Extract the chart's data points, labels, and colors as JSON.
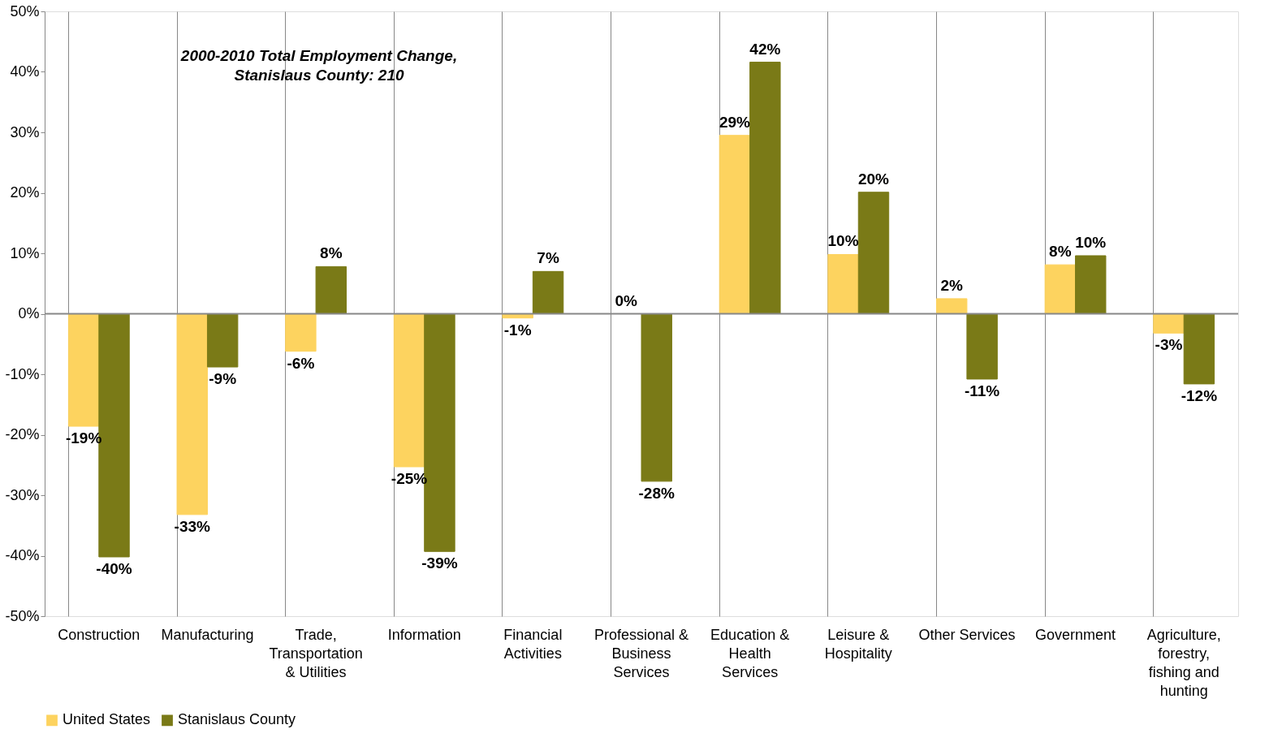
{
  "chart_data": {
    "type": "bar",
    "categories": [
      "Construction",
      "Manufacturing",
      "Trade, Transportation & Utilities",
      "Information",
      "Financial Activities",
      "Professional & Business Services",
      "Education & Health Services",
      "Leisure & Hospitality",
      "Other Services",
      "Government",
      "Agriculture, forestry, fishing and hunting"
    ],
    "series": [
      {
        "name": "United States",
        "color": "#fdd35f",
        "values": [
          -18.6,
          -33.2,
          -6.2,
          -25.3,
          -0.7,
          0,
          29.5,
          9.8,
          2.5,
          8.1,
          -3.2
        ],
        "value_labels": [
          "-19%",
          "-33%",
          "-6%",
          "-25%",
          "-1%",
          "0%",
          "29%",
          "10%",
          "2%",
          "8%",
          "-3%"
        ]
      },
      {
        "name": "Stanislaus County",
        "color": "#7a7a17",
        "values": [
          -40.2,
          -8.8,
          7.8,
          -39.3,
          7.0,
          -27.7,
          41.6,
          20.1,
          -10.8,
          9.6,
          -11.6
        ],
        "value_labels": [
          "-40%",
          "-9%",
          "8%",
          "-39%",
          "7%",
          "-28%",
          "42%",
          "20%",
          "-11%",
          "10%",
          "-12%"
        ]
      }
    ],
    "ylim": [
      -50,
      50
    ],
    "yticks": [
      {
        "value": -50,
        "label": "-50%"
      },
      {
        "value": -40,
        "label": "-40%"
      },
      {
        "value": -30,
        "label": "-30%"
      },
      {
        "value": -20,
        "label": "-20%"
      },
      {
        "value": -10,
        "label": "-10%"
      },
      {
        "value": 0,
        "label": "0%"
      },
      {
        "value": 10,
        "label": "10%"
      },
      {
        "value": 20,
        "label": "20%"
      },
      {
        "value": 30,
        "label": "30%"
      },
      {
        "value": 40,
        "label": "40%"
      },
      {
        "value": 50,
        "label": "50%"
      }
    ],
    "ref_lines": [
      {
        "axis": "y",
        "value": 0
      }
    ],
    "annotations": [
      "2000-2010 Total Employment Change,\nStanislaus County:  210"
    ],
    "grid": "x",
    "legend": "bottom"
  }
}
